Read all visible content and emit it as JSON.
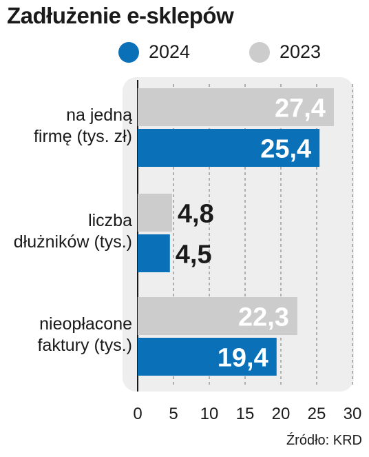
{
  "title": "Zadłużenie e-sklepów",
  "source": "Źródło: KRD",
  "colors": {
    "s2024": "#0a70b8",
    "s2023": "#cccccc",
    "panel": "#eeeeee"
  },
  "chart_data": {
    "type": "bar",
    "orientation": "horizontal",
    "title": "Zadłużenie e-sklepów",
    "categories": [
      [
        "na jedną",
        "firmę (tys. zł)"
      ],
      [
        "liczba",
        "dłużników (tys.)"
      ],
      [
        "nieopłacone",
        "faktury (tys.)"
      ]
    ],
    "series": [
      {
        "name": "2023",
        "values": [
          27.4,
          4.8,
          22.3
        ],
        "labels": [
          "27,4",
          "4,8",
          "22,3"
        ]
      },
      {
        "name": "2024",
        "values": [
          25.4,
          4.5,
          19.4
        ],
        "labels": [
          "25,4",
          "4,5",
          "19,4"
        ]
      }
    ],
    "xlim": [
      0,
      30
    ],
    "xticks": [
      0,
      5,
      10,
      15,
      20,
      25,
      30
    ],
    "legend": "top",
    "grid": true
  }
}
